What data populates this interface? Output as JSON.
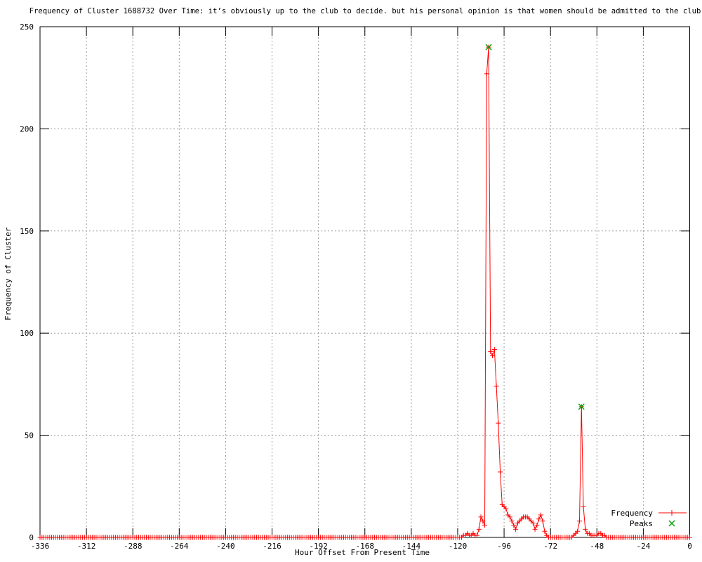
{
  "chart_data": {
    "type": "line",
    "title": "Frequency of Cluster 1688732 Over Time: it’s obviously up to the club to decide. but his personal opinion is that women should be admitted to the club",
    "xlabel": "Hour Offset From Present Time",
    "ylabel": "Frequency of Cluster",
    "xlim": [
      -336,
      0
    ],
    "ylim": [
      0,
      250
    ],
    "x_ticks": [
      -336,
      -312,
      -288,
      -264,
      -240,
      -216,
      -192,
      -168,
      -144,
      -120,
      -96,
      -72,
      -48,
      -24,
      0
    ],
    "y_ticks": [
      0,
      50,
      100,
      150,
      200,
      250
    ],
    "grid": true,
    "legend_position": "bottom-right",
    "series": [
      {
        "name": "Frequency",
        "color": "#ff0000",
        "marker": "plus",
        "style": "line+markers",
        "x_start": -336,
        "x_end": 0,
        "x_step": 1,
        "default_value": 0,
        "nonzero_points": [
          [
            -117,
            1
          ],
          [
            -116,
            1
          ],
          [
            -115,
            2
          ],
          [
            -114,
            1
          ],
          [
            -113,
            1
          ],
          [
            -112,
            2
          ],
          [
            -111,
            1
          ],
          [
            -110,
            1
          ],
          [
            -109,
            4
          ],
          [
            -108,
            10
          ],
          [
            -107,
            8
          ],
          [
            -106,
            6
          ],
          [
            -105,
            227
          ],
          [
            -104,
            240
          ],
          [
            -103,
            91
          ],
          [
            -102,
            89
          ],
          [
            -101,
            92
          ],
          [
            -100,
            74
          ],
          [
            -99,
            56
          ],
          [
            -98,
            32
          ],
          [
            -97,
            16
          ],
          [
            -96,
            15
          ],
          [
            -95,
            14
          ],
          [
            -94,
            11
          ],
          [
            -93,
            10
          ],
          [
            -92,
            8
          ],
          [
            -91,
            6
          ],
          [
            -90,
            4
          ],
          [
            -89,
            7
          ],
          [
            -88,
            8
          ],
          [
            -87,
            9
          ],
          [
            -86,
            10
          ],
          [
            -85,
            10
          ],
          [
            -84,
            10
          ],
          [
            -83,
            9
          ],
          [
            -82,
            8
          ],
          [
            -81,
            7
          ],
          [
            -80,
            4
          ],
          [
            -79,
            6
          ],
          [
            -78,
            9
          ],
          [
            -77,
            11
          ],
          [
            -76,
            8
          ],
          [
            -75,
            3
          ],
          [
            -74,
            1
          ],
          [
            -60,
            1
          ],
          [
            -59,
            2
          ],
          [
            -58,
            3
          ],
          [
            -57,
            8
          ],
          [
            -56,
            64
          ],
          [
            -55,
            15
          ],
          [
            -54,
            4
          ],
          [
            -53,
            2
          ],
          [
            -52,
            2
          ],
          [
            -51,
            1
          ],
          [
            -50,
            1
          ],
          [
            -49,
            1
          ],
          [
            -48,
            1
          ],
          [
            -47,
            2
          ],
          [
            -46,
            2
          ],
          [
            -45,
            1
          ],
          [
            -44,
            1
          ]
        ]
      },
      {
        "name": "Peaks",
        "color": "#00a000",
        "marker": "cross",
        "style": "markers",
        "points": [
          [
            -104,
            240
          ],
          [
            -56,
            64
          ]
        ]
      }
    ],
    "axis_color": "#000000",
    "grid_color": "#9b9b9b",
    "background": "#ffffff"
  }
}
